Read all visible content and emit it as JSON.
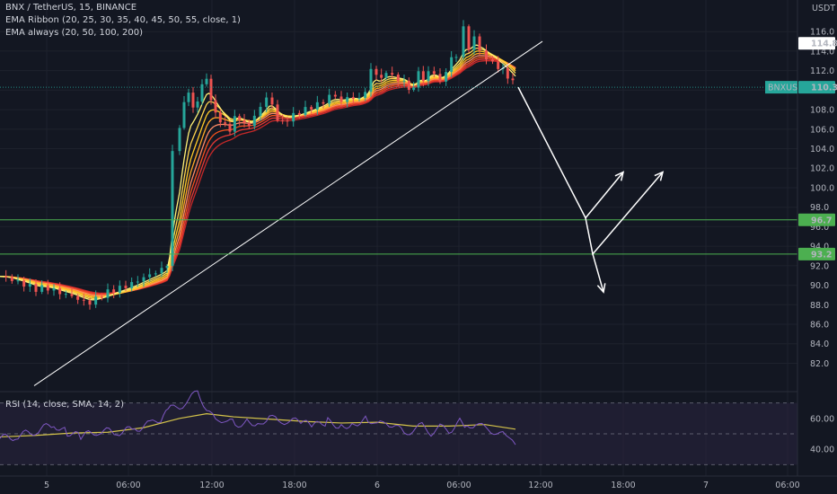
{
  "chart_data": {
    "type": "line",
    "symbol_title": "BNX / TetherUS, 15, BINANCE",
    "indicators": [
      "EMA Ribbon (20, 25, 30, 35, 40, 45, 50, 55, close, 1)",
      "EMA always (20, 50, 100, 200)"
    ],
    "rsi_label": "RSI (14, close, SMA, 14, 2)",
    "price_axis": {
      "unit": "USDT",
      "ylim": [
        80.2,
        117.4
      ],
      "ticks": [
        "116.0",
        "114.0",
        "112.0",
        "110.0",
        "108.0",
        "106.0",
        "104.0",
        "102.0",
        "100.0",
        "98.0",
        "96.0",
        "94.0",
        "92.0",
        "90.0",
        "88.0",
        "86.0",
        "84.0",
        "82.0"
      ]
    },
    "time_axis": {
      "ticks": [
        "5",
        "06:00",
        "12:00",
        "18:00",
        "6",
        "06:00",
        "12:00",
        "18:00",
        "7",
        "06:00"
      ]
    },
    "rsi_axis": {
      "ylim": [
        25,
        75
      ],
      "ticks": [
        "60.00",
        "40.00"
      ],
      "levels": [
        70,
        50,
        30
      ]
    },
    "price_labels": [
      {
        "id": "high",
        "value": 114.8,
        "text": "114.8",
        "color": "#ffffff",
        "text_color": "#131722"
      },
      {
        "id": "last",
        "value": 110.3,
        "symbol": "BNXUSDT",
        "text": "110.3",
        "color": "#26a69a",
        "text_color": "#ffffff"
      },
      {
        "id": "support1",
        "value": 96.7,
        "text": "96.7",
        "color": "#4caf50",
        "text_color": "#ffffff"
      },
      {
        "id": "support2",
        "value": 93.2,
        "text": "93.2",
        "color": "#4caf50",
        "text_color": "#ffffff"
      }
    ],
    "horizontal_lines": [
      96.7,
      93.2
    ],
    "price_series_approx": [
      [
        0,
        90.9
      ],
      [
        10,
        90.7
      ],
      [
        20,
        90.3
      ],
      [
        30,
        90.0
      ],
      [
        40,
        89.6
      ],
      [
        50,
        89.8
      ],
      [
        60,
        89.5
      ],
      [
        70,
        89.1
      ],
      [
        80,
        88.9
      ],
      [
        90,
        88.4
      ],
      [
        100,
        88.2
      ],
      [
        110,
        88.8
      ],
      [
        120,
        89.3
      ],
      [
        130,
        89.6
      ],
      [
        140,
        89.9
      ],
      [
        150,
        90.3
      ],
      [
        160,
        90.8
      ],
      [
        170,
        91.2
      ],
      [
        180,
        91.6
      ],
      [
        186,
        92.2
      ],
      [
        189,
        98.0
      ],
      [
        192,
        103.5
      ],
      [
        196,
        105.6
      ],
      [
        200,
        106.4
      ],
      [
        205,
        108.5
      ],
      [
        210,
        110.0
      ],
      [
        215,
        108.0
      ],
      [
        220,
        109.0
      ],
      [
        225,
        110.5
      ],
      [
        230,
        111.2
      ],
      [
        235,
        109.0
      ],
      [
        240,
        107.6
      ],
      [
        248,
        106.5
      ],
      [
        256,
        106.0
      ],
      [
        264,
        107.6
      ],
      [
        272,
        106.4
      ],
      [
        280,
        106.6
      ],
      [
        290,
        108.4
      ],
      [
        300,
        109.6
      ],
      [
        306,
        107.4
      ],
      [
        312,
        106.6
      ],
      [
        320,
        107.0
      ],
      [
        330,
        107.6
      ],
      [
        340,
        108.0
      ],
      [
        350,
        108.4
      ],
      [
        360,
        108.8
      ],
      [
        370,
        109.7
      ],
      [
        380,
        108.8
      ],
      [
        390,
        109.4
      ],
      [
        400,
        109.0
      ],
      [
        410,
        110.6
      ],
      [
        416,
        113.2
      ],
      [
        422,
        110.5
      ],
      [
        430,
        112.0
      ],
      [
        440,
        111.1
      ],
      [
        450,
        110.9
      ],
      [
        458,
        109.6
      ],
      [
        466,
        111.8
      ],
      [
        474,
        110.8
      ],
      [
        480,
        112.6
      ],
      [
        490,
        110.6
      ],
      [
        500,
        112.9
      ],
      [
        508,
        113.6
      ],
      [
        512,
        114.6
      ],
      [
        516,
        116.4
      ],
      [
        522,
        114.2
      ],
      [
        528,
        115.5
      ],
      [
        534,
        114.0
      ],
      [
        538,
        113.6
      ],
      [
        545,
        112.9
      ],
      [
        552,
        112.6
      ],
      [
        560,
        112.0
      ],
      [
        568,
        111.2
      ],
      [
        574,
        110.3
      ]
    ],
    "trendline": [
      [
        38,
        79.7
      ],
      [
        604,
        115.0
      ]
    ],
    "projection": {
      "path": [
        [
          577,
          110.3
        ],
        [
          652,
          96.9
        ],
        [
          694,
          101.6
        ]
      ],
      "alt_path": [
        [
          652,
          96.9
        ],
        [
          660,
          93.2
        ],
        [
          738,
          101.6
        ]
      ],
      "down_path": [
        [
          660,
          93.2
        ],
        [
          672,
          89.3
        ]
      ]
    },
    "ribbon_colors": [
      "#fff176",
      "#ffd54f",
      "#ffca28",
      "#ffa726",
      "#ff8a65",
      "#f4511e",
      "#e53935",
      "#c62828"
    ],
    "rsi_series_approx": [
      [
        0,
        47.0
      ],
      [
        20,
        48.5
      ],
      [
        40,
        52.0
      ],
      [
        60,
        56.0
      ],
      [
        75,
        51.0
      ],
      [
        90,
        48.0
      ],
      [
        110,
        52.0
      ],
      [
        130,
        51.0
      ],
      [
        150,
        53.0
      ],
      [
        170,
        57.0
      ],
      [
        182,
        61.0
      ],
      [
        190,
        66.0
      ],
      [
        200,
        68.0
      ],
      [
        210,
        71.0
      ],
      [
        220,
        78.0
      ],
      [
        230,
        66.0
      ],
      [
        240,
        58.0
      ],
      [
        250,
        60.0
      ],
      [
        262,
        56.0
      ],
      [
        275,
        58.0
      ],
      [
        290,
        57.0
      ],
      [
        300,
        62.0
      ],
      [
        310,
        57.0
      ],
      [
        320,
        59.0
      ],
      [
        335,
        57.0
      ],
      [
        350,
        55.0
      ],
      [
        365,
        58.0
      ],
      [
        380,
        55.0
      ],
      [
        395,
        57.0
      ],
      [
        410,
        60.0
      ],
      [
        420,
        55.0
      ],
      [
        430,
        58.0
      ],
      [
        440,
        55.0
      ],
      [
        450,
        50.0
      ],
      [
        460,
        53.0
      ],
      [
        470,
        55.0
      ],
      [
        480,
        51.0
      ],
      [
        490,
        54.0
      ],
      [
        500,
        52.0
      ],
      [
        512,
        58.0
      ],
      [
        520,
        55.0
      ],
      [
        530,
        57.0
      ],
      [
        540,
        53.0
      ],
      [
        550,
        52.0
      ],
      [
        560,
        49.0
      ],
      [
        567,
        45.0
      ],
      [
        574,
        43.0
      ]
    ],
    "rsi_sma_approx": [
      [
        0,
        48.0
      ],
      [
        40,
        49.0
      ],
      [
        80,
        50.5
      ],
      [
        120,
        51.0
      ],
      [
        160,
        54.0
      ],
      [
        200,
        60.0
      ],
      [
        230,
        63.0
      ],
      [
        260,
        61.0
      ],
      [
        300,
        59.5
      ],
      [
        340,
        58.0
      ],
      [
        380,
        57.0
      ],
      [
        420,
        57.5
      ],
      [
        460,
        55.0
      ],
      [
        500,
        55.0
      ],
      [
        540,
        56.0
      ],
      [
        574,
        53.0
      ]
    ],
    "colors": {
      "background": "#131722",
      "grid": "#1e222d",
      "up": "#26a69a",
      "down": "#ef5350",
      "rsi_line": "#7e57c2",
      "rsi_sma": "#d4c34a",
      "rsi_band": "#2a2540",
      "support_line": "#4caf50",
      "arrows": "#ffffff"
    }
  }
}
